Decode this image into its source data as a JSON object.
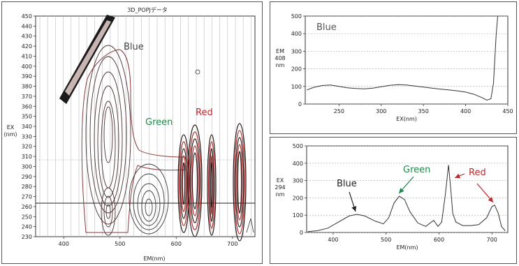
{
  "colors": {
    "blue_label": "#444444",
    "green": "#1e8a4a",
    "red": "#c0282e",
    "contour_dark": "#3a2a2a",
    "contour_red": "#b03030"
  },
  "contour": {
    "title": "3D_POPJデータ",
    "ylabel_line1": "EX",
    "ylabel_line2": "(nm)",
    "xlabel": "EM(nm)",
    "xticks": [
      "400",
      "500",
      "600",
      "700"
    ],
    "yticks": [
      "230",
      "240",
      "250",
      "260",
      "270",
      "280",
      "290",
      "300",
      "310",
      "320",
      "330",
      "340",
      "350",
      "360",
      "370",
      "380",
      "390",
      "400",
      "410",
      "420",
      "430",
      "440",
      "450"
    ],
    "labels": {
      "blue": "Blue",
      "green": "Green",
      "red": "Red"
    }
  },
  "chart_data": [
    {
      "type": "line",
      "title": "Blue",
      "xlabel": "EX(nm)",
      "ylabel": "EM 408 nm",
      "xlim": [
        210,
        450
      ],
      "ylim": [
        0,
        500
      ],
      "xticks": [
        250,
        300,
        350,
        400,
        450
      ],
      "yticks": [
        0,
        100,
        200,
        300,
        400,
        500
      ],
      "series": [
        {
          "name": "",
          "x": [
            212,
            220,
            230,
            240,
            250,
            260,
            270,
            280,
            290,
            300,
            310,
            320,
            330,
            340,
            350,
            360,
            370,
            380,
            390,
            400,
            410,
            420,
            425,
            430,
            433,
            436,
            438
          ],
          "y": [
            80,
            95,
            105,
            108,
            100,
            92,
            88,
            86,
            90,
            98,
            106,
            110,
            108,
            102,
            96,
            90,
            85,
            80,
            75,
            68,
            55,
            35,
            22,
            30,
            120,
            380,
            500
          ]
        }
      ]
    },
    {
      "type": "line",
      "title": "",
      "xlabel": "EM(nm)",
      "ylabel": "EX 294 nm",
      "xlim": [
        350,
        730
      ],
      "ylim": [
        0,
        500
      ],
      "xticks": [
        400,
        500,
        600,
        700
      ],
      "yticks": [
        0,
        100,
        200,
        300,
        400,
        500
      ],
      "series": [
        {
          "name": "",
          "x": [
            352,
            370,
            390,
            410,
            430,
            445,
            460,
            480,
            495,
            505,
            515,
            525,
            535,
            545,
            560,
            575,
            590,
            598,
            605,
            612,
            618,
            622,
            626,
            632,
            645,
            660,
            675,
            690,
            700,
            705,
            712,
            718,
            725
          ],
          "y": [
            5,
            10,
            25,
            60,
            95,
            105,
            95,
            65,
            50,
            85,
            170,
            210,
            190,
            120,
            55,
            35,
            70,
            35,
            60,
            220,
            390,
            260,
            110,
            60,
            40,
            40,
            45,
            85,
            150,
            158,
            110,
            35,
            10
          ]
        }
      ],
      "annotations": [
        {
          "text": "Blue",
          "arrow_to": [
            445,
            105
          ],
          "color": "#222222"
        },
        {
          "text": "Green",
          "arrow_to": [
            527,
            210
          ],
          "color": "#1e8a4a"
        },
        {
          "text": "Red",
          "arrow_to": [
            622,
            300
          ],
          "color": "#c0282e"
        },
        {
          "text": "",
          "arrow_to": [
            705,
            158
          ],
          "color": "#c0282e"
        }
      ]
    }
  ]
}
